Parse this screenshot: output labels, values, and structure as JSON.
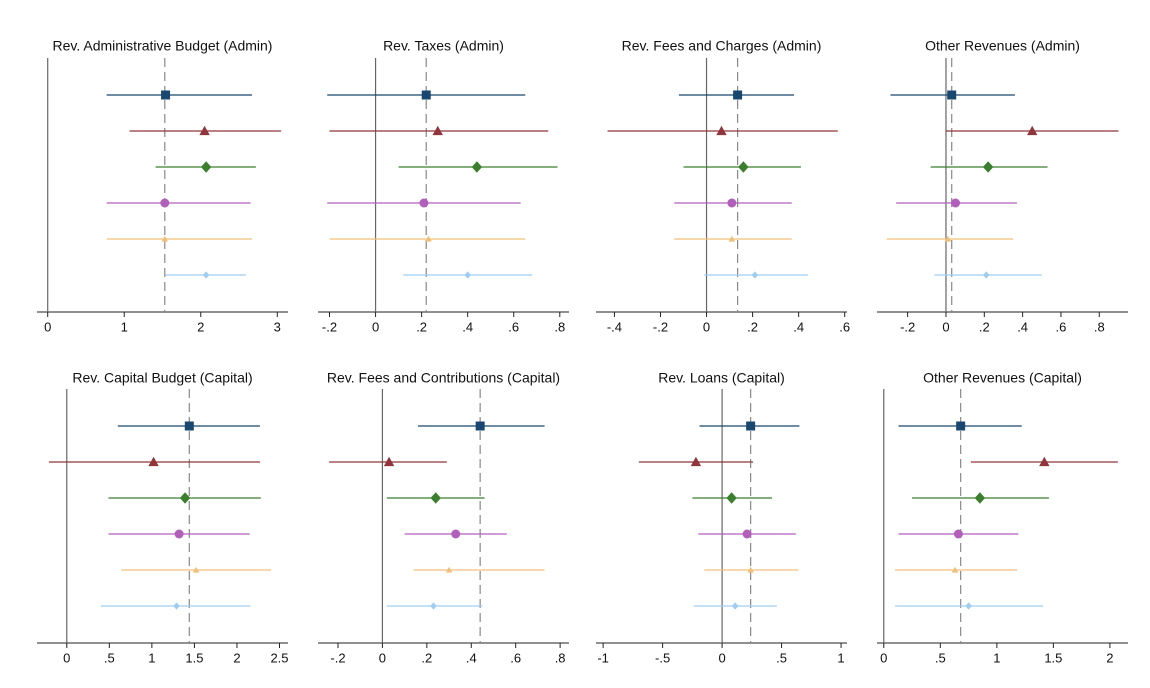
{
  "chart_data": [
    {
      "type": "coefplot",
      "title": "Rev. Administrative Budget (Admin)",
      "xlim": [
        -0.14,
        3.14
      ],
      "xticks": [
        0,
        1,
        2,
        3
      ],
      "ref": 1.53,
      "estimates": [
        1.54,
        2.05,
        2.07,
        1.53,
        1.53,
        2.07
      ],
      "lower": [
        0.77,
        1.07,
        1.41,
        0.77,
        0.77,
        1.54
      ],
      "upper": [
        2.67,
        3.05,
        2.72,
        2.65,
        2.67,
        2.59
      ],
      "colors": [
        "#1a476f",
        "#90353b",
        "#3b7f2e",
        "#b25fbc",
        "#f0c07a",
        "#9fcdf2"
      ],
      "markers": [
        "square",
        "triangle",
        "diamond",
        "circle",
        "small-triangle",
        "small-diamond"
      ]
    },
    {
      "type": "coefplot",
      "title": "Rev. Taxes (Admin)",
      "xlim": [
        -0.25,
        0.84
      ],
      "xticks": [
        {
          "value": -0.2,
          "label": "-.2"
        },
        0,
        {
          "value": 0.2,
          "label": ".2"
        },
        {
          "value": 0.4,
          "label": ".4"
        },
        {
          "value": 0.6,
          "label": ".6"
        },
        {
          "value": 0.8,
          "label": ".8"
        }
      ],
      "ref": 0.22,
      "estimates": [
        0.22,
        0.27,
        0.44,
        0.21,
        0.23,
        0.4
      ],
      "lower": [
        -0.21,
        -0.2,
        0.1,
        -0.21,
        -0.2,
        0.12
      ],
      "upper": [
        0.65,
        0.75,
        0.79,
        0.63,
        0.65,
        0.68
      ],
      "colors": [
        "#1a476f",
        "#90353b",
        "#3b7f2e",
        "#b25fbc",
        "#f0c07a",
        "#9fcdf2"
      ],
      "markers": [
        "square",
        "triangle",
        "diamond",
        "circle",
        "small-triangle",
        "small-diamond"
      ]
    },
    {
      "type": "coefplot",
      "title": "Rev. Fees and Charges (Admin)",
      "xlim": [
        -0.48,
        0.61
      ],
      "xticks": [
        {
          "value": -0.4,
          "label": "-.4"
        },
        {
          "value": -0.2,
          "label": "-.2"
        },
        0,
        {
          "value": 0.2,
          "label": ".2"
        },
        {
          "value": 0.4,
          "label": ".4"
        },
        {
          "value": 0.6,
          "label": ".6"
        }
      ],
      "ref": 0.135,
      "estimates": [
        0.135,
        0.065,
        0.16,
        0.11,
        0.11,
        0.21
      ],
      "lower": [
        -0.12,
        -0.43,
        -0.1,
        -0.14,
        -0.14,
        -0.01
      ],
      "upper": [
        0.38,
        0.57,
        0.41,
        0.37,
        0.37,
        0.44
      ],
      "colors": [
        "#1a476f",
        "#90353b",
        "#3b7f2e",
        "#b25fbc",
        "#f0c07a",
        "#9fcdf2"
      ],
      "markers": [
        "square",
        "triangle",
        "diamond",
        "circle",
        "small-triangle",
        "small-diamond"
      ]
    },
    {
      "type": "coefplot",
      "title": "Other Revenues (Admin)",
      "xlim": [
        -0.36,
        0.95
      ],
      "xticks": [
        {
          "value": -0.2,
          "label": "-.2"
        },
        0,
        {
          "value": 0.2,
          "label": ".2"
        },
        {
          "value": 0.4,
          "label": ".4"
        },
        {
          "value": 0.6,
          "label": ".6"
        },
        {
          "value": 0.8,
          "label": ".8"
        }
      ],
      "ref": 0.03,
      "estimates": [
        0.03,
        0.45,
        0.22,
        0.05,
        0.01,
        0.21
      ],
      "lower": [
        -0.29,
        0.0,
        -0.08,
        -0.26,
        -0.31,
        -0.06
      ],
      "upper": [
        0.36,
        0.9,
        0.53,
        0.37,
        0.35,
        0.5
      ],
      "colors": [
        "#1a476f",
        "#90353b",
        "#3b7f2e",
        "#b25fbc",
        "#f0c07a",
        "#9fcdf2"
      ],
      "markers": [
        "square",
        "triangle",
        "diamond",
        "circle",
        "small-triangle",
        "small-diamond"
      ]
    },
    {
      "type": "coefplot",
      "title": "Rev. Capital Budget (Capital)",
      "xlim": [
        -0.35,
        2.6
      ],
      "xticks": [
        0,
        {
          "value": 0.5,
          "label": ".5"
        },
        1,
        1.5,
        2,
        2.5
      ],
      "ref": 1.44,
      "estimates": [
        1.44,
        1.02,
        1.39,
        1.32,
        1.52,
        1.29
      ],
      "lower": [
        0.6,
        -0.21,
        0.49,
        0.49,
        0.64,
        0.4
      ],
      "upper": [
        2.27,
        2.27,
        2.28,
        2.15,
        2.4,
        2.16
      ],
      "colors": [
        "#1a476f",
        "#90353b",
        "#3b7f2e",
        "#b25fbc",
        "#f0c07a",
        "#9fcdf2"
      ],
      "markers": [
        "square",
        "triangle",
        "diamond",
        "circle",
        "small-triangle",
        "small-diamond"
      ]
    },
    {
      "type": "coefplot",
      "title": "Rev. Fees and Contributions (Capital)",
      "xlim": [
        -0.29,
        0.84
      ],
      "xticks": [
        {
          "value": -0.2,
          "label": "-.2"
        },
        0,
        {
          "value": 0.2,
          "label": ".2"
        },
        {
          "value": 0.4,
          "label": ".4"
        },
        {
          "value": 0.6,
          "label": ".6"
        },
        {
          "value": 0.8,
          "label": ".8"
        }
      ],
      "ref": 0.44,
      "estimates": [
        0.44,
        0.03,
        0.24,
        0.33,
        0.3,
        0.23
      ],
      "lower": [
        0.16,
        -0.24,
        0.02,
        0.1,
        0.14,
        0.02
      ],
      "upper": [
        0.73,
        0.29,
        0.46,
        0.56,
        0.73,
        0.45
      ],
      "colors": [
        "#1a476f",
        "#90353b",
        "#3b7f2e",
        "#b25fbc",
        "#f0c07a",
        "#9fcdf2"
      ],
      "markers": [
        "square",
        "triangle",
        "diamond",
        "circle",
        "small-triangle",
        "small-diamond"
      ]
    },
    {
      "type": "coefplot",
      "title": "Rev. Loans (Capital)",
      "xlim": [
        -1.06,
        1.05
      ],
      "xticks": [
        -1,
        {
          "value": -0.5,
          "label": "-.5"
        },
        0,
        {
          "value": 0.5,
          "label": ".5"
        },
        1
      ],
      "ref": 0.24,
      "estimates": [
        0.24,
        -0.22,
        0.08,
        0.21,
        0.24,
        0.11
      ],
      "lower": [
        -0.19,
        -0.7,
        -0.25,
        -0.2,
        -0.15,
        -0.24
      ],
      "upper": [
        0.65,
        0.26,
        0.42,
        0.62,
        0.64,
        0.46
      ],
      "colors": [
        "#1a476f",
        "#90353b",
        "#3b7f2e",
        "#b25fbc",
        "#f0c07a",
        "#9fcdf2"
      ],
      "markers": [
        "square",
        "triangle",
        "diamond",
        "circle",
        "small-triangle",
        "small-diamond"
      ]
    },
    {
      "type": "coefplot",
      "title": "Other Revenues (Capital)",
      "xlim": [
        -0.06,
        2.16
      ],
      "xticks": [
        0,
        {
          "value": 0.5,
          "label": ".5"
        },
        1,
        1.5,
        2
      ],
      "ref": 0.68,
      "estimates": [
        0.68,
        1.42,
        0.85,
        0.66,
        0.63,
        0.75
      ],
      "lower": [
        0.13,
        0.77,
        0.25,
        0.13,
        0.1,
        0.1
      ],
      "upper": [
        1.22,
        2.07,
        1.46,
        1.19,
        1.18,
        1.41
      ],
      "colors": [
        "#1a476f",
        "#90353b",
        "#3b7f2e",
        "#b25fbc",
        "#f0c07a",
        "#9fcdf2"
      ],
      "markers": [
        "square",
        "triangle",
        "diamond",
        "circle",
        "small-triangle",
        "small-diamond"
      ]
    }
  ]
}
